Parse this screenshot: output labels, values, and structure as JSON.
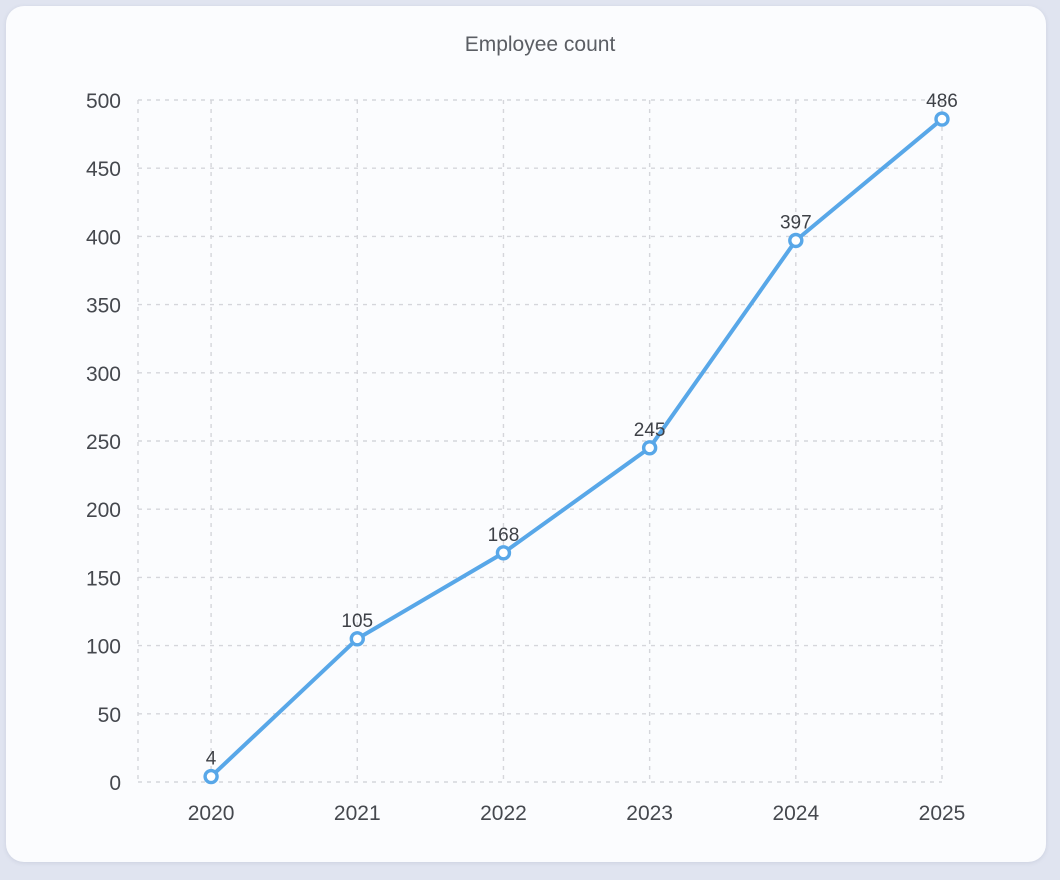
{
  "page": {
    "background_color": "#e0e4f0",
    "card_background_color": "#fbfcfe"
  },
  "chart_data": {
    "type": "line",
    "title": "Employee count",
    "categories": [
      "2020",
      "2021",
      "2022",
      "2023",
      "2024",
      "2025"
    ],
    "series": [
      {
        "name": "Employee count",
        "values": [
          4,
          105,
          168,
          245,
          397,
          486
        ],
        "data_labels": [
          "4",
          "105",
          "168",
          "245",
          "397",
          "486"
        ],
        "color": "#58a7e8",
        "marker": "open-circle"
      }
    ],
    "xlabel": "",
    "ylabel": "",
    "ylim": [
      0,
      500
    ],
    "ytick_interval": 50,
    "ytick_labels": [
      "0",
      "50",
      "100",
      "150",
      "200",
      "250",
      "300",
      "350",
      "400",
      "450",
      "500"
    ],
    "grid": {
      "visible": true,
      "style": "dashed",
      "color": "#d5d6db"
    },
    "legend": "none",
    "text_colors": {
      "title": "#5b5e64",
      "ticks": "#45484e",
      "data_labels": "#3e4147"
    }
  }
}
